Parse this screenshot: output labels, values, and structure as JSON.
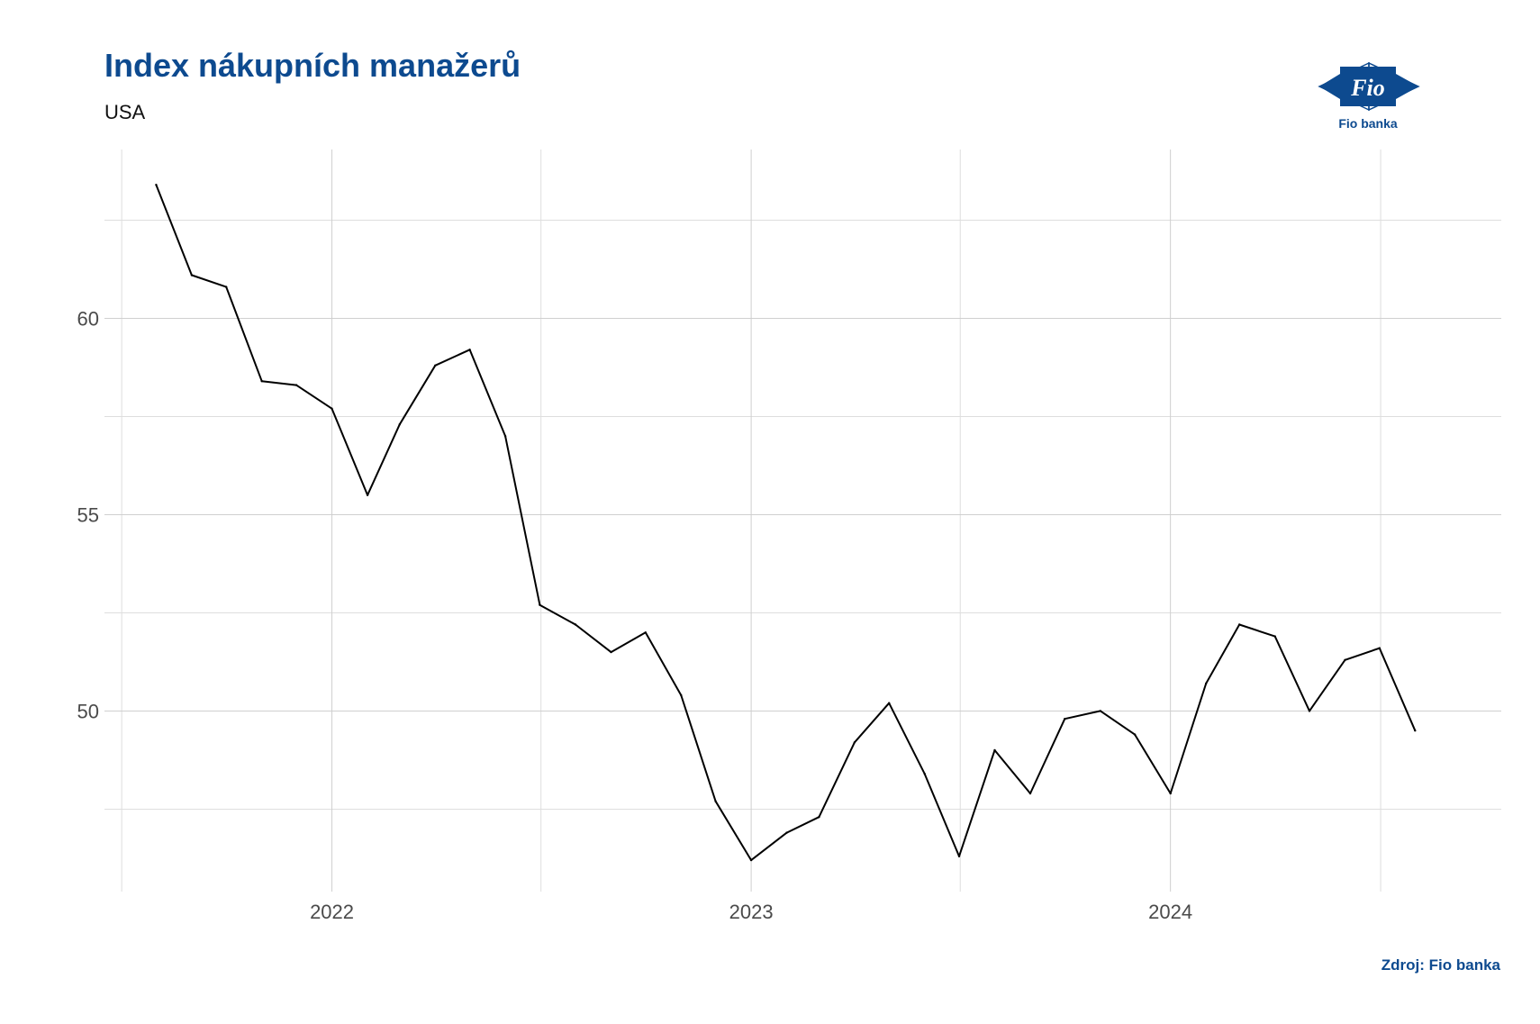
{
  "title": "Index nákupních manažerů",
  "subtitle": "USA",
  "source": "Zdroj: Fio banka",
  "logo": {
    "mark_text": "Fio",
    "caption": "Fio banka",
    "color": "#0d4a8f",
    "icon": "fio-logo-icon"
  },
  "chart_data": {
    "type": "line",
    "title": "Index nákupních manažerů",
    "subtitle": "USA",
    "xlabel": "",
    "ylabel": "",
    "grid": true,
    "line_color": "#000000",
    "x_tick_labels": [
      "2022",
      "2023",
      "2024"
    ],
    "y_tick_labels": [
      "50",
      "55",
      "60"
    ],
    "y_ticks": [
      50,
      55,
      60
    ],
    "ylim": [
      45.4,
      64.3
    ],
    "xlim": [
      "2021-06-17",
      "2024-10-15"
    ],
    "x_tick_dates": [
      "2022-01-01",
      "2023-01-01",
      "2024-01-01"
    ],
    "x": [
      "2021-08",
      "2021-09",
      "2021-10",
      "2021-11",
      "2021-12",
      "2022-01",
      "2022-02",
      "2022-03",
      "2022-04",
      "2022-05",
      "2022-06",
      "2022-07",
      "2022-08",
      "2022-09",
      "2022-10",
      "2022-11",
      "2022-12",
      "2023-01",
      "2023-02",
      "2023-03",
      "2023-04",
      "2023-05",
      "2023-06",
      "2023-07",
      "2023-08",
      "2023-09",
      "2023-10",
      "2023-11",
      "2023-12",
      "2024-01",
      "2024-02",
      "2024-03",
      "2024-04",
      "2024-05",
      "2024-06",
      "2024-07",
      "2024-08"
    ],
    "series": [
      {
        "values": [
          63.4,
          61.1,
          60.8,
          58.4,
          58.3,
          57.7,
          55.5,
          57.3,
          58.8,
          59.2,
          57.0,
          52.7,
          52.2,
          51.5,
          52.0,
          50.4,
          47.7,
          46.2,
          46.9,
          47.3,
          49.2,
          50.2,
          48.4,
          46.3,
          49.0,
          47.9,
          49.8,
          50.0,
          49.4,
          47.9,
          50.7,
          52.2,
          51.9,
          50.0,
          51.3,
          51.6,
          49.5
        ]
      }
    ]
  }
}
